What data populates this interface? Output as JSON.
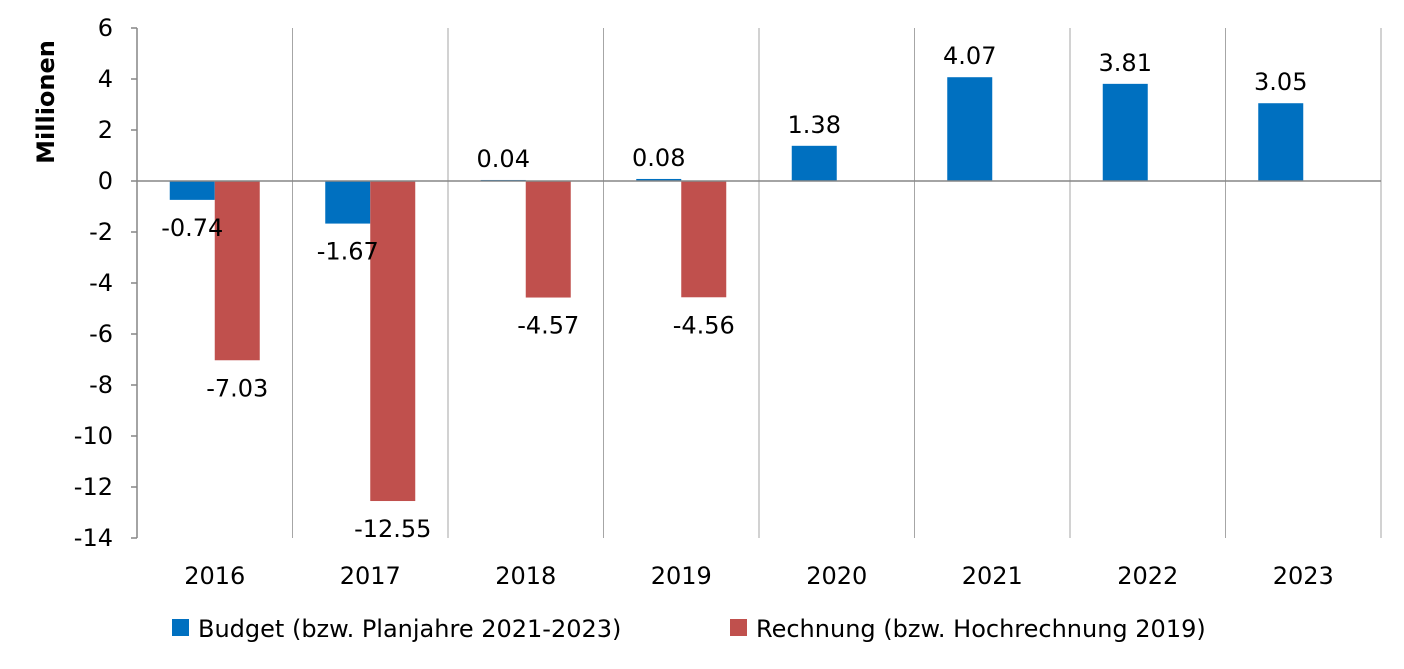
{
  "chart_data": {
    "type": "bar",
    "categories": [
      "2016",
      "2017",
      "2018",
      "2019",
      "2020",
      "2021",
      "2022",
      "2023"
    ],
    "series": [
      {
        "name": "Budget (bzw. Planjahre 2021-2023)",
        "color": "#0070c0",
        "values": [
          -0.74,
          -1.67,
          0.04,
          0.08,
          1.38,
          4.07,
          3.81,
          3.05
        ],
        "labels": [
          "-0.74",
          "-1.67",
          "0.04",
          "0.08",
          "1.38",
          "4.07",
          "3.81",
          "3.05"
        ]
      },
      {
        "name": "Rechnung (bzw. Hochrechnung 2019)",
        "color": "#c0504d",
        "values": [
          -7.03,
          -12.55,
          -4.57,
          -4.56,
          null,
          null,
          null,
          null
        ],
        "labels": [
          "-7.03",
          "-12.55",
          "-4.57",
          "-4.56",
          null,
          null,
          null,
          null
        ]
      }
    ],
    "xlabel": "",
    "ylabel": "Millionen",
    "ylim": [
      -14,
      6
    ],
    "yticks": [
      6,
      4,
      2,
      0,
      -2,
      -4,
      -6,
      -8,
      -10,
      -12,
      -14
    ],
    "ytick_labels": [
      "6",
      "4",
      "2",
      "0",
      "-2",
      "-4",
      "-6",
      "-8",
      "-10",
      "-12",
      "-14"
    ],
    "grid": "vertical",
    "legend_position": "bottom"
  }
}
